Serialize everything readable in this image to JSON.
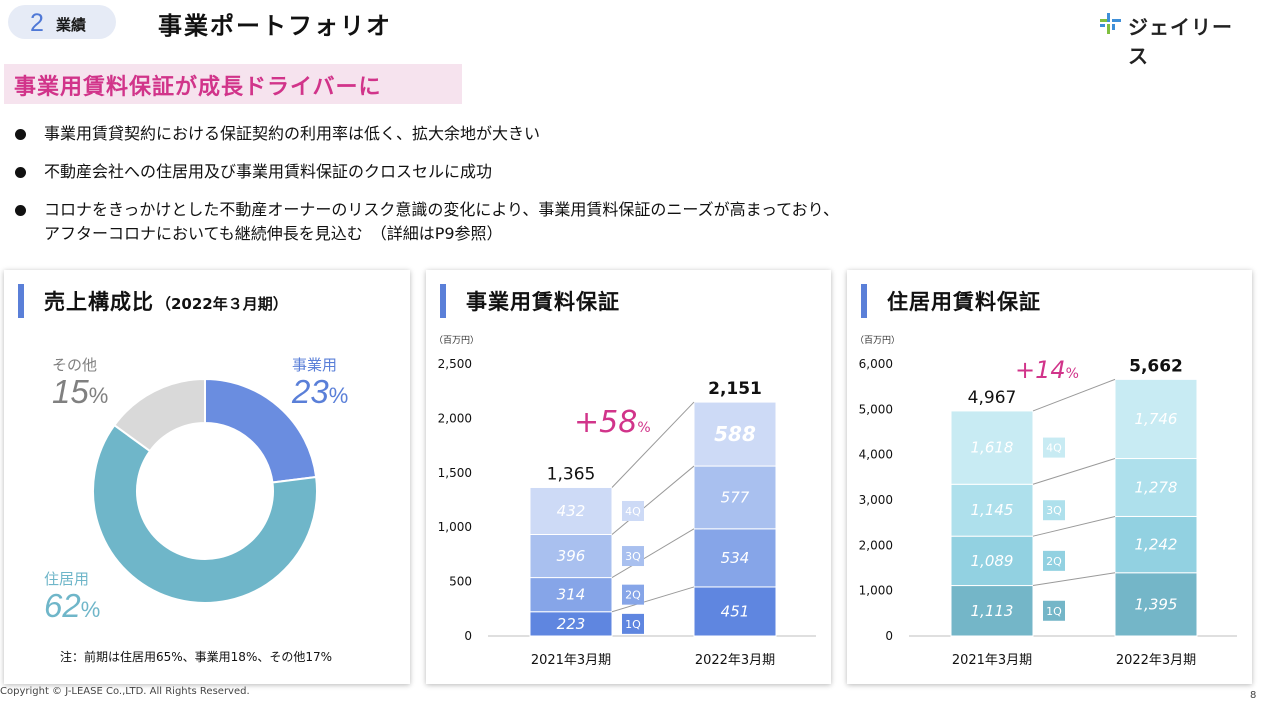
{
  "header": {
    "section_number": "2",
    "section_label": "業績",
    "title": "事業ポートフォリオ",
    "logo_text": "ジェイリース"
  },
  "highlight": "事業用賃料保証が成長ドライバーに",
  "bullets": [
    {
      "lines": [
        "事業用賃貸契約における保証契約の利用率は低く、拡大余地が大きい"
      ]
    },
    {
      "lines": [
        "不動産会社への住居用及び事業用賃料保証のクロスセルに成功"
      ]
    },
    {
      "lines": [
        "コロナをきっかけとした不動産オーナーのリスク意識の変化により、事業用賃料保証のニーズが高まっており、",
        "アフターコロナにおいても継続伸長を見込む　（詳細はP9参照）"
      ]
    }
  ],
  "panel1": {
    "title": "売上構成比",
    "subtitle": "（2022年３月期）",
    "note": "注：前期は住居用65%、事業用18%、その他17%"
  },
  "panel2": {
    "title": "事業用賃料保証"
  },
  "panel3": {
    "title": "住居用賃料保証"
  },
  "chart_data": [
    {
      "type": "pie",
      "categories": [
        "事業用",
        "住居用",
        "その他"
      ],
      "values": [
        23,
        62,
        15
      ],
      "unit": "%",
      "colors": [
        "#6a8de0",
        "#6fb6c9",
        "#d9d9d9"
      ]
    },
    {
      "type": "bar",
      "stacked": true,
      "unit_label": "（百万円）",
      "categories": [
        "2021年3月期",
        "2022年3月期"
      ],
      "series": [
        {
          "name": "1Q",
          "values": [
            223,
            451
          ],
          "color": "#5f86e0"
        },
        {
          "name": "2Q",
          "values": [
            314,
            534
          ],
          "color": "#86a5e8"
        },
        {
          "name": "3Q",
          "values": [
            396,
            577
          ],
          "color": "#a9c0ef"
        },
        {
          "name": "4Q",
          "values": [
            432,
            588
          ],
          "color": "#cddaf6"
        }
      ],
      "totals": [
        "1,365",
        "2,151"
      ],
      "growth_label": "+58",
      "growth_unit": "%",
      "yticks": [
        "0",
        "500",
        "1,000",
        "1,500",
        "2,000",
        "2,500"
      ],
      "ylim": [
        0,
        2500
      ]
    },
    {
      "type": "bar",
      "stacked": true,
      "unit_label": "（百万円）",
      "categories": [
        "2021年3月期",
        "2022年3月期"
      ],
      "series": [
        {
          "name": "1Q",
          "values": [
            1113,
            1395
          ],
          "color": "#74b6c8"
        },
        {
          "name": "2Q",
          "values": [
            1089,
            1242
          ],
          "color": "#92d1e1"
        },
        {
          "name": "3Q",
          "values": [
            1145,
            1278
          ],
          "color": "#aee0ec"
        },
        {
          "name": "4Q",
          "values": [
            1618,
            1746
          ],
          "color": "#c8ebf3"
        }
      ],
      "totals": [
        "4,967",
        "5,662"
      ],
      "growth_label": "+14",
      "growth_unit": "%",
      "yticks": [
        "0",
        "1,000",
        "2,000",
        "3,000",
        "4,000",
        "5,000",
        "6,000"
      ],
      "ylim": [
        0,
        6000
      ]
    }
  ],
  "footer": {
    "copyright": "Copyright © J-LEASE Co.,LTD. All Rights Reserved.",
    "page": "8"
  }
}
